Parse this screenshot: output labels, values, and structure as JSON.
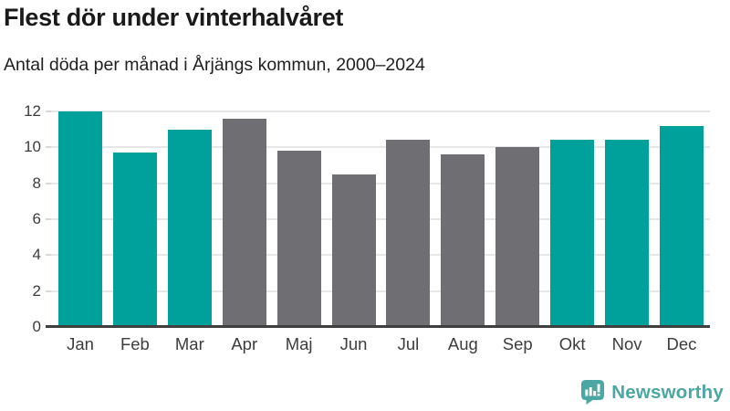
{
  "header": {
    "title": "Flest dör under vinterhalvåret",
    "subtitle": "Antal döda per månad i Årjängs kommun, 2000–2024"
  },
  "chart_data": {
    "type": "bar",
    "title": "Flest dör under vinterhalvåret",
    "subtitle": "Antal döda per månad i Årjängs kommun, 2000–2024",
    "categories": [
      "Jan",
      "Feb",
      "Mar",
      "Apr",
      "Maj",
      "Jun",
      "Jul",
      "Aug",
      "Sep",
      "Okt",
      "Nov",
      "Dec"
    ],
    "values": [
      12.0,
      9.7,
      11.0,
      11.6,
      9.8,
      8.5,
      10.4,
      9.6,
      10.0,
      10.4,
      10.4,
      11.2
    ],
    "bar_palette": [
      "winter",
      "winter",
      "winter",
      "summer",
      "summer",
      "summer",
      "summer",
      "summer",
      "summer",
      "winter",
      "winter",
      "winter"
    ],
    "series_colors": {
      "winter": "#00a19a",
      "summer": "#6e6e73"
    },
    "xlabel": "",
    "ylabel": "",
    "ylim": [
      0,
      12
    ],
    "yticks": [
      0,
      2,
      4,
      6,
      8,
      10,
      12
    ],
    "grid": "horizontal",
    "gridline_color": "#e7e7e7",
    "legend": "none"
  },
  "footer": {
    "brand": "Newsworthy",
    "brand_color": "#4ba7a3"
  }
}
